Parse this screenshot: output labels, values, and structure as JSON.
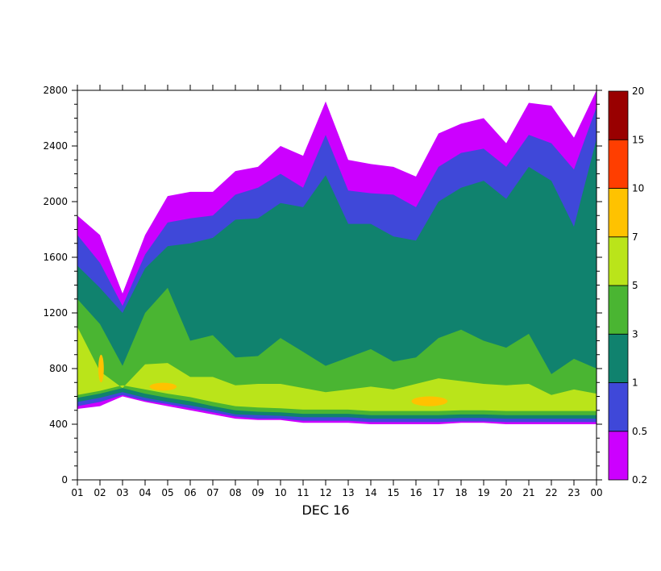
{
  "chart_data": {
    "type": "filled-contour",
    "date_label": "DEC 16",
    "x_tick_labels": [
      "01",
      "02",
      "03",
      "04",
      "05",
      "06",
      "07",
      "08",
      "09",
      "10",
      "11",
      "12",
      "13",
      "14",
      "15",
      "16",
      "17",
      "18",
      "19",
      "20",
      "21",
      "22",
      "23",
      "00"
    ],
    "y_tick_labels": [
      "0",
      "400",
      "800",
      "1200",
      "1600",
      "2000",
      "2400",
      "2800"
    ],
    "ylim": [
      0,
      2800
    ],
    "contour_levels": [
      "0.2",
      "0.5",
      "1",
      "3",
      "5",
      "7",
      "10",
      "15",
      "20"
    ],
    "level_colors": [
      "#cc00ff",
      "#3f48d9",
      "#10826e",
      "#4ab532",
      "#bae41a",
      "#ffc200",
      "#ff3e00",
      "#990000"
    ],
    "bands": [
      {
        "range": "0.2-0.5",
        "color": "#cc00ff",
        "top": [
          1900,
          1760,
          1340,
          1760,
          2040,
          2070,
          2070,
          2220,
          2250,
          2400,
          2330,
          2720,
          2300,
          2270,
          2250,
          2180,
          2490,
          2560,
          2600,
          2420,
          2710,
          2690,
          2460,
          2800
        ],
        "bottom": [
          510,
          530,
          600,
          560,
          530,
          500,
          470,
          440,
          430,
          430,
          410,
          410,
          410,
          400,
          400,
          400,
          400,
          410,
          410,
          400,
          400,
          400,
          400,
          400
        ]
      },
      {
        "range": "0.5-1",
        "color": "#3f48d9",
        "top": [
          1760,
          1560,
          1250,
          1620,
          1850,
          1880,
          1900,
          2050,
          2100,
          2200,
          2100,
          2480,
          2080,
          2060,
          2050,
          1960,
          2250,
          2350,
          2380,
          2250,
          2480,
          2420,
          2230,
          2680
        ],
        "bottom": [
          530,
          560,
          610,
          570,
          545,
          515,
          485,
          455,
          440,
          440,
          425,
          425,
          425,
          415,
          415,
          415,
          415,
          420,
          420,
          415,
          415,
          415,
          415,
          415
        ]
      },
      {
        "range": "1-3",
        "color": "#10826e",
        "top": [
          1540,
          1380,
          1200,
          1520,
          1680,
          1700,
          1740,
          1870,
          1880,
          1990,
          1960,
          2190,
          1840,
          1840,
          1750,
          1720,
          2000,
          2100,
          2150,
          2020,
          2250,
          2150,
          1820,
          2450
        ],
        "bottom": [
          560,
          590,
          630,
          590,
          560,
          535,
          505,
          470,
          465,
          460,
          450,
          450,
          450,
          440,
          440,
          440,
          440,
          445,
          445,
          440,
          440,
          440,
          440,
          440
        ]
      },
      {
        "range": "3-5",
        "color": "#4ab532",
        "top": [
          1300,
          1120,
          820,
          1200,
          1380,
          1000,
          1040,
          880,
          890,
          1020,
          920,
          820,
          880,
          940,
          850,
          880,
          1020,
          1080,
          1000,
          950,
          1050,
          760,
          870,
          800
        ],
        "bottom": [
          590,
          620,
          660,
          620,
          590,
          565,
          530,
          500,
          490,
          485,
          475,
          475,
          475,
          465,
          465,
          465,
          465,
          470,
          470,
          465,
          465,
          465,
          465,
          465
        ]
      },
      {
        "range": "5-7",
        "color": "#bae41a",
        "top": [
          1100,
          780,
          660,
          830,
          840,
          740,
          740,
          680,
          690,
          690,
          660,
          630,
          650,
          670,
          650,
          690,
          730,
          710,
          690,
          680,
          690,
          610,
          650,
          620
        ],
        "bottom": [
          610,
          640,
          680,
          650,
          620,
          595,
          560,
          530,
          520,
          515,
          505,
          505,
          505,
          495,
          495,
          495,
          495,
          500,
          500,
          495,
          495,
          495,
          495,
          495
        ]
      }
    ],
    "highlights": [
      {
        "range": "7-10",
        "color": "#ffc200",
        "x": 3.8,
        "y": 670,
        "rx": 0.6,
        "ry": 28
      },
      {
        "range": "7-10",
        "color": "#ffc200",
        "x": 15.6,
        "y": 565,
        "rx": 0.8,
        "ry": 35
      },
      {
        "range": "7-10",
        "color": "#ffc200",
        "x": 1.05,
        "y": 800,
        "rx": 0.12,
        "ry": 100
      }
    ]
  }
}
